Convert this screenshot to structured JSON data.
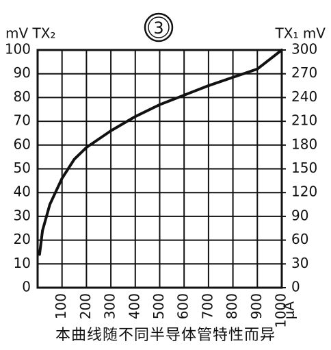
{
  "chart_data": {
    "type": "line",
    "title": "3",
    "caption": "本曲线随不同半导体管特性而异",
    "ylabel": "mV TX₂",
    "y2label": "TX₁ mV",
    "xlabel": "μA",
    "x": [
      8,
      20,
      50,
      100,
      150,
      200,
      300,
      400,
      500,
      600,
      700,
      800,
      900,
      1000
    ],
    "series": [
      {
        "name": "TX",
        "color": "#111111",
        "values": [
          14,
          24,
          35,
          46,
          54,
          59,
          66,
          72,
          77,
          81,
          85,
          88.5,
          92,
          100
        ]
      }
    ],
    "xlim": [
      0,
      1000
    ],
    "xticks": [
      100,
      200,
      300,
      400,
      500,
      600,
      700,
      800,
      900,
      1000
    ],
    "ylim": [
      0,
      100
    ],
    "yticks": [
      0,
      10,
      20,
      30,
      40,
      50,
      60,
      70,
      80,
      90,
      100
    ],
    "y2lim": [
      0,
      300
    ],
    "y2ticks": [
      0,
      30,
      60,
      90,
      120,
      150,
      180,
      210,
      240,
      270,
      300
    ],
    "grid": true
  }
}
